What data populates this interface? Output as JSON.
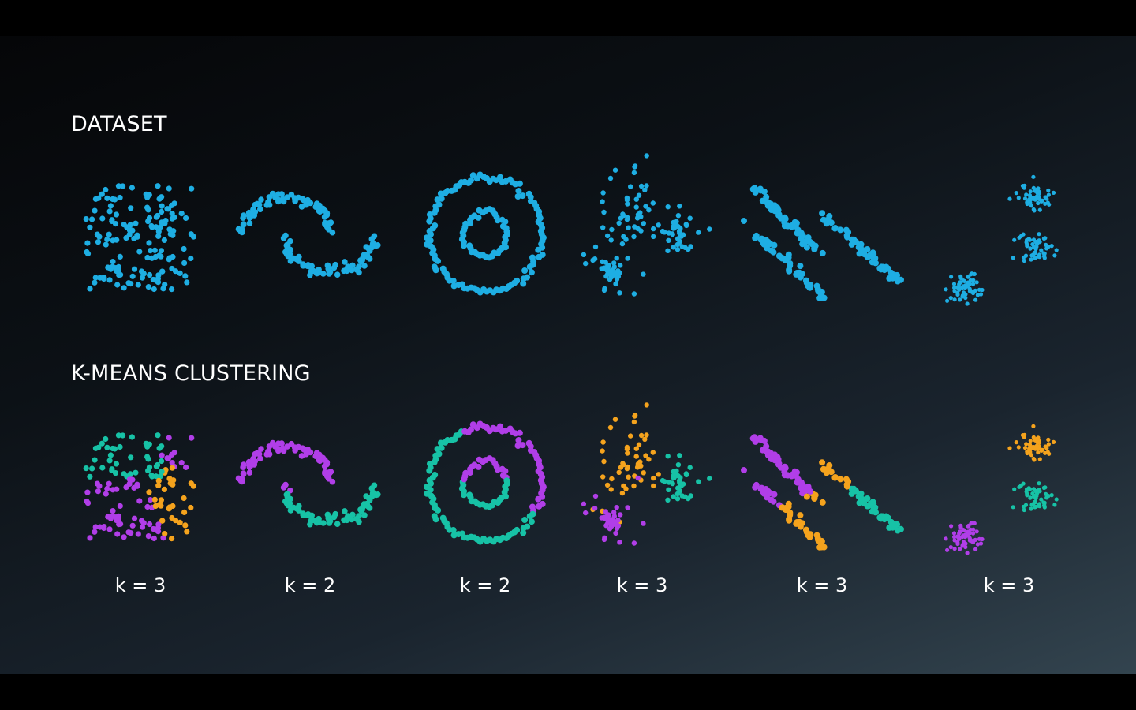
{
  "titles": {
    "dataset": "DATASET",
    "kmeans": "K-MEANS CLUSTERING"
  },
  "colors": {
    "dataset_points": "#1eaee3",
    "cluster_teal": "#17c2a6",
    "cluster_orange": "#f5a31d",
    "cluster_purple": "#b13ee8",
    "text": "#ffffff"
  },
  "panels": [
    {
      "shape": "uniform-square",
      "k_label": "k = 3"
    },
    {
      "shape": "two-moons",
      "k_label": "k = 2"
    },
    {
      "shape": "concentric-circles",
      "k_label": "k = 2"
    },
    {
      "shape": "varied-density-blobs",
      "k_label": "k = 3"
    },
    {
      "shape": "anisotropic-stripes",
      "k_label": "k = 3"
    },
    {
      "shape": "three-blobs",
      "k_label": "k = 3"
    }
  ]
}
